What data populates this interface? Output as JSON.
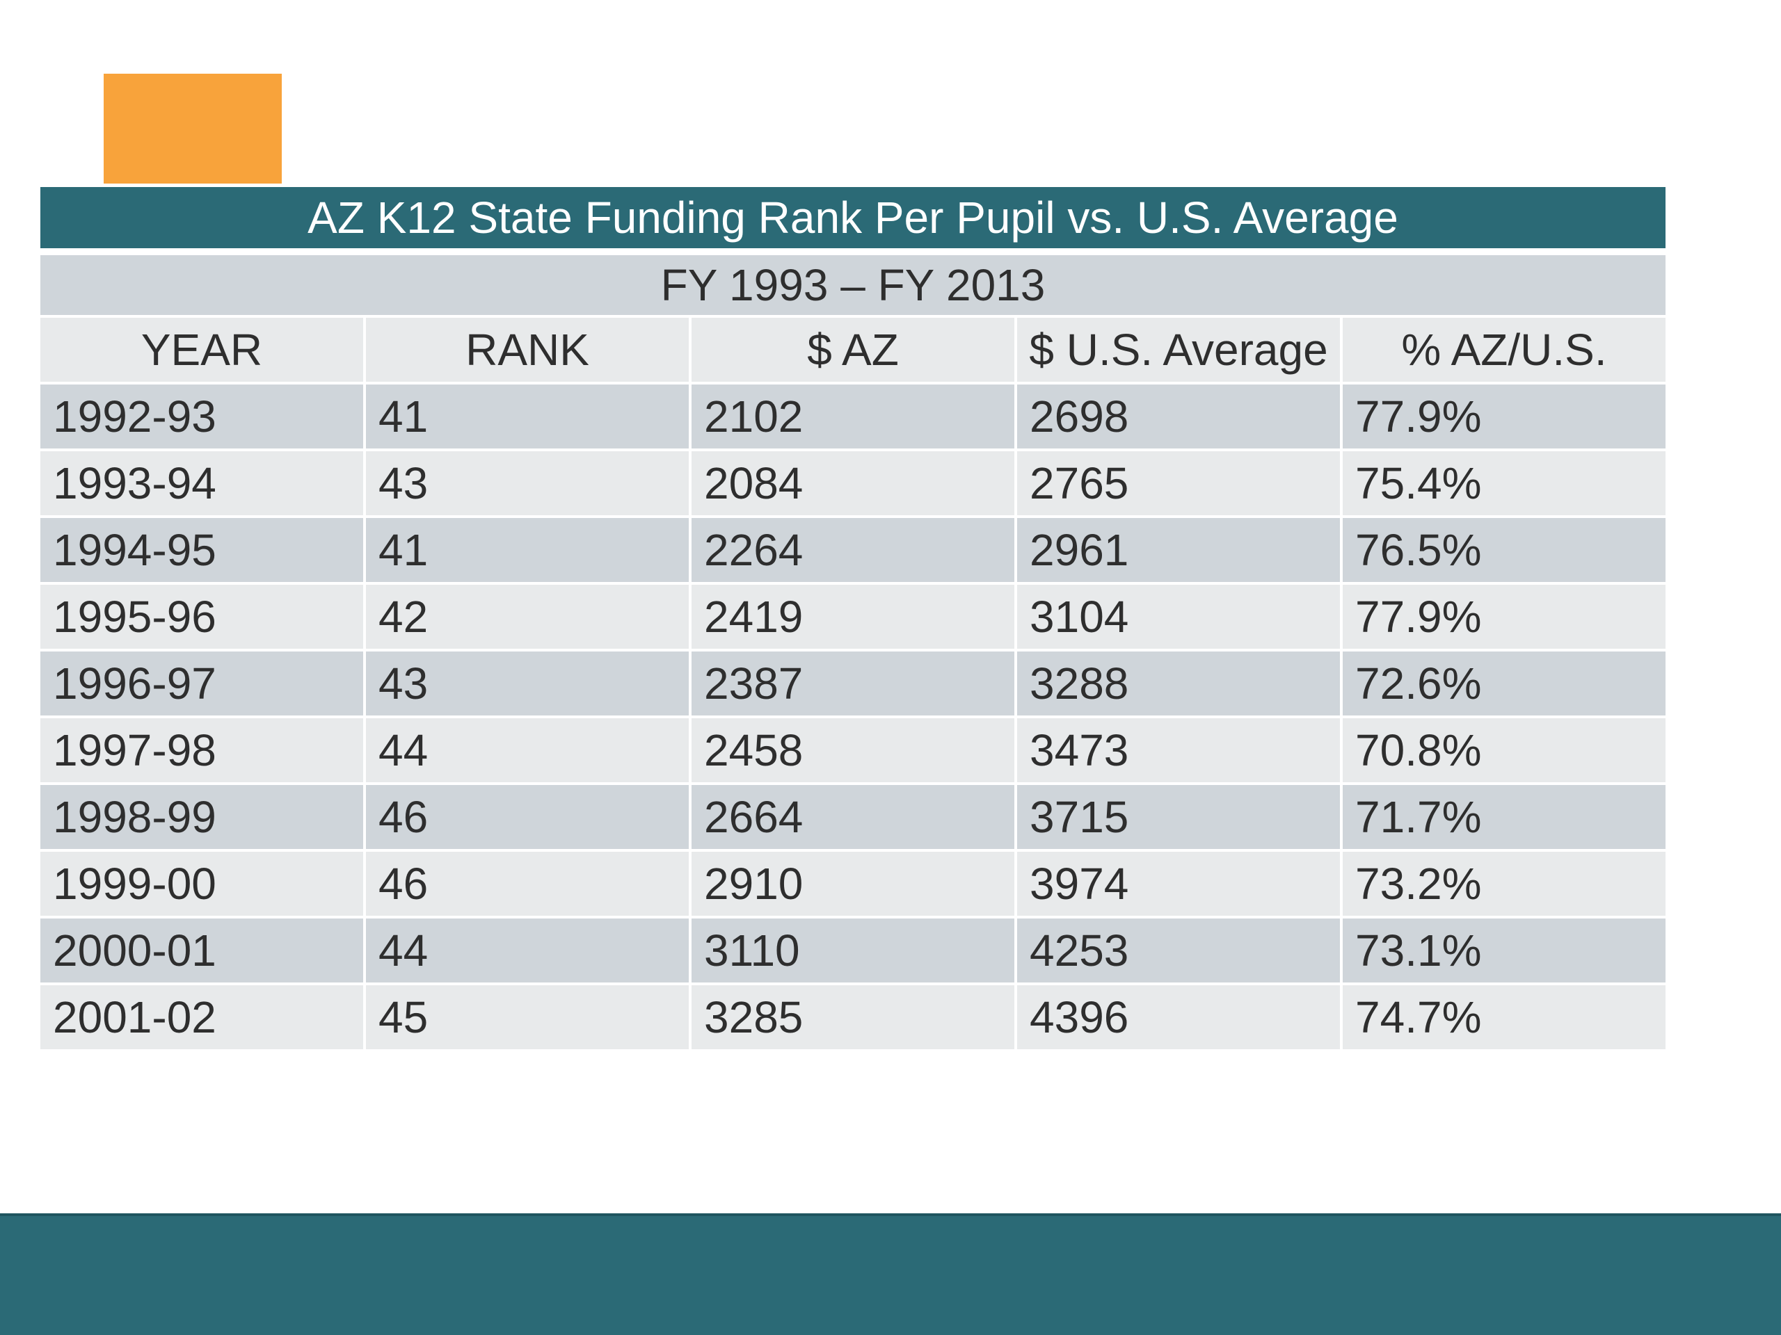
{
  "colors": {
    "accent": "#f8a33b",
    "teal": "#2b6a76",
    "row_dark": "#cfd5da",
    "row_light": "#e8eaeb"
  },
  "table": {
    "title": "AZ K12 State Funding Rank Per Pupil vs. U.S. Average",
    "subtitle": "FY 1993 – FY 2013",
    "headers": [
      "YEAR",
      "RANK",
      "$ AZ",
      "$ U.S. Average",
      "% AZ/U.S."
    ],
    "rows": [
      [
        "1992-93",
        "41",
        "2102",
        "2698",
        "77.9%"
      ],
      [
        "1993-94",
        "43",
        "2084",
        "2765",
        "75.4%"
      ],
      [
        "1994-95",
        "41",
        "2264",
        "2961",
        "76.5%"
      ],
      [
        "1995-96",
        "42",
        "2419",
        "3104",
        "77.9%"
      ],
      [
        "1996-97",
        "43",
        "2387",
        "3288",
        "72.6%"
      ],
      [
        "1997-98",
        "44",
        "2458",
        "3473",
        "70.8%"
      ],
      [
        "1998-99",
        "46",
        "2664",
        "3715",
        "71.7%"
      ],
      [
        "1999-00",
        "46",
        "2910",
        "3974",
        "73.2%"
      ],
      [
        "2000-01",
        "44",
        "3110",
        "4253",
        "73.1%"
      ],
      [
        "2001-02",
        "45",
        "3285",
        "4396",
        "74.7%"
      ]
    ]
  }
}
